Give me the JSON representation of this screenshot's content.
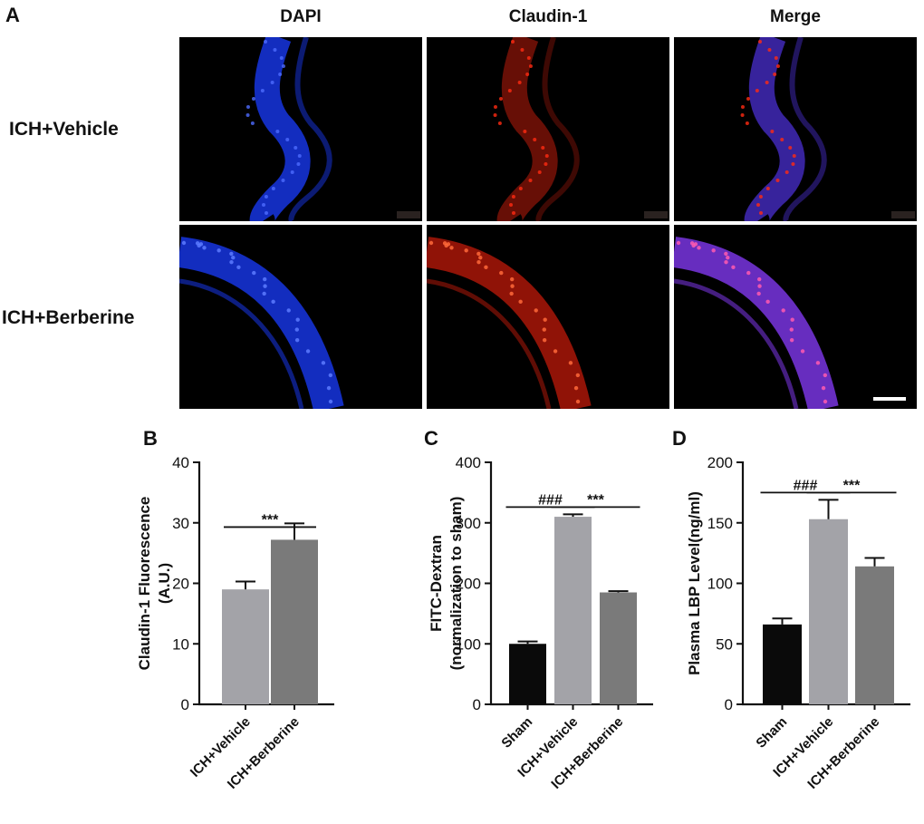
{
  "figure": {
    "panel_labels": [
      "A",
      "B",
      "C",
      "D"
    ],
    "columns": [
      "DAPI",
      "Claudin-1",
      "Merge"
    ],
    "rows": [
      "ICH+Vehicle",
      "ICH+Berberine"
    ],
    "colors": {
      "dapi": "#1a3cff",
      "claudin": "#ff2a12",
      "merge": "#8a3cff",
      "sham_bar": "#0a0a0a",
      "vehicle_bar": "#a3a3a8",
      "berberine_bar": "#7a7a7a"
    }
  },
  "chart_data": [
    {
      "type": "bar",
      "panel": "B",
      "categories": [
        "ICH+Vehicle",
        "ICH+Berberine"
      ],
      "values": [
        19.0,
        27.2
      ],
      "errors": [
        1.3,
        2.7
      ],
      "ylabel": "Claudin-1 Fluorescence",
      "ylabel2": "(A.U.)",
      "ylim": [
        0,
        40
      ],
      "yticks": [
        0,
        10,
        20,
        30,
        40
      ],
      "significance": [
        {
          "from": 0,
          "to": 1,
          "label": "***"
        }
      ]
    },
    {
      "type": "bar",
      "panel": "C",
      "categories": [
        "Sham",
        "ICH+Vehicle",
        "ICH+Berberine"
      ],
      "values": [
        100,
        310,
        185
      ],
      "errors": [
        4,
        4,
        2
      ],
      "ylabel": "FITC-Dextran",
      "ylabel2": "(normalization to sham)",
      "ylim": [
        0,
        400
      ],
      "yticks": [
        0,
        100,
        200,
        300,
        400
      ],
      "significance": [
        {
          "from": 0,
          "to": 1,
          "label": "###"
        },
        {
          "from": 1,
          "to": 2,
          "label": "***"
        }
      ]
    },
    {
      "type": "bar",
      "panel": "D",
      "categories": [
        "Sham",
        "ICH+Vehicle",
        "ICH+Berberine"
      ],
      "values": [
        66,
        153,
        114
      ],
      "errors": [
        5,
        16,
        7
      ],
      "ylabel": "Plasma LBP Level(ng/ml)",
      "ylabel2": "",
      "ylim": [
        0,
        200
      ],
      "yticks": [
        0,
        50,
        100,
        150,
        200
      ],
      "significance": [
        {
          "from": 0,
          "to": 1,
          "label": "###"
        },
        {
          "from": 1,
          "to": 2,
          "label": "***"
        }
      ]
    }
  ]
}
